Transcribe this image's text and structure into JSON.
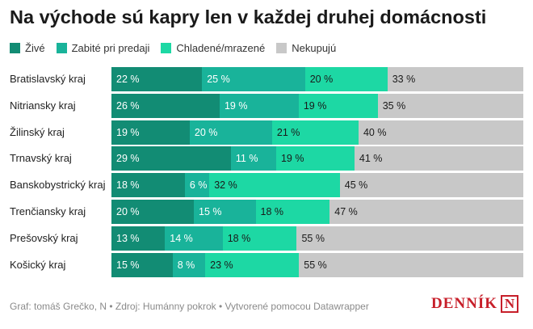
{
  "title": "Na východe sú kapry len v každej druhej domácnosti",
  "footer": {
    "credit": "Graf: tomáš Grečko, N",
    "sep1": " • ",
    "source": "Zdroj: Humánny pokrok",
    "sep2": " • ",
    "tool": "Vytvorené pomocou Datawrapper"
  },
  "logo": {
    "text": "DENNÍK",
    "mark": "N"
  },
  "colors": {
    "ZIVE": "#128c74",
    "ZABITE": "#19b39a",
    "CHLADENE": "#1dd8a4",
    "NEKUPUJU": "#c8c8c8"
  },
  "chart_data": {
    "type": "bar",
    "orientation": "horizontal",
    "stacked": true,
    "unit": "%",
    "categories": [
      "Bratislavský kraj",
      "Nitriansky kraj",
      "Žilinský kraj",
      "Trnavský kraj",
      "Banskobystrický kraj",
      "Trenčiansky kraj",
      "Prešovský kraj",
      "Košický kraj"
    ],
    "series": [
      {
        "name": "Živé",
        "values": [
          22,
          26,
          19,
          29,
          18,
          20,
          13,
          15
        ]
      },
      {
        "name": "Zabité pri predaji",
        "values": [
          25,
          19,
          20,
          11,
          6,
          15,
          14,
          8
        ]
      },
      {
        "name": "Chladené/mrazené",
        "values": [
          20,
          19,
          21,
          19,
          32,
          18,
          18,
          23
        ]
      },
      {
        "name": "Nekupujú",
        "values": [
          33,
          35,
          40,
          41,
          45,
          47,
          55,
          55
        ]
      }
    ],
    "legend_position": "top-left",
    "xlim": [
      0,
      100
    ]
  }
}
